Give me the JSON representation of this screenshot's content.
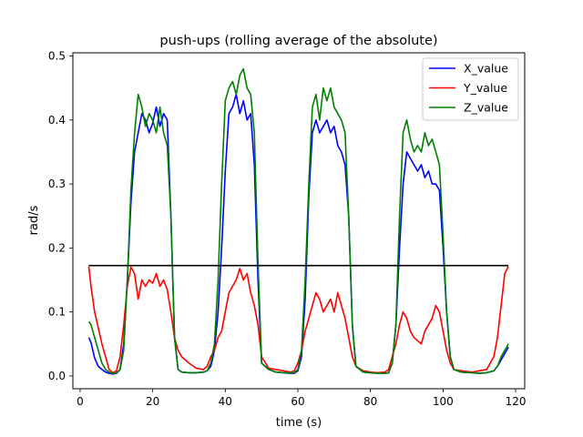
{
  "chart_data": {
    "type": "line",
    "title": "push-ups (rolling average of the absolute)",
    "xlabel": "time (s)",
    "ylabel": "rad/s",
    "xlim": [
      -2.0,
      122.5
    ],
    "ylim": [
      -0.02,
      0.505
    ],
    "xticks": [
      0,
      20,
      40,
      60,
      80,
      100,
      120
    ],
    "xtick_labels": [
      "0",
      "20",
      "40",
      "60",
      "80",
      "100",
      "120"
    ],
    "yticks": [
      0.0,
      0.1,
      0.2,
      0.3,
      0.4,
      0.5
    ],
    "ytick_labels": [
      "0.0",
      "0.1",
      "0.2",
      "0.3",
      "0.4",
      "0.5"
    ],
    "grid": false,
    "legend_position": "top-right",
    "series": [
      {
        "name": "X_value",
        "color": "#0000ff",
        "points": [
          [
            2.4,
            0.06
          ],
          [
            3.0,
            0.052
          ],
          [
            4.0,
            0.028
          ],
          [
            5.0,
            0.015
          ],
          [
            6.0,
            0.01
          ],
          [
            7.0,
            0.006
          ],
          [
            8.0,
            0.004
          ],
          [
            9.0,
            0.003
          ],
          [
            10.0,
            0.004
          ],
          [
            11.0,
            0.01
          ],
          [
            12.0,
            0.05
          ],
          [
            13.0,
            0.15
          ],
          [
            14.0,
            0.27
          ],
          [
            15.0,
            0.35
          ],
          [
            16.0,
            0.38
          ],
          [
            17.0,
            0.41
          ],
          [
            18.0,
            0.4
          ],
          [
            19.0,
            0.38
          ],
          [
            20.0,
            0.395
          ],
          [
            21.0,
            0.42
          ],
          [
            22.0,
            0.39
          ],
          [
            23.0,
            0.41
          ],
          [
            24.0,
            0.4
          ],
          [
            25.0,
            0.25
          ],
          [
            26.0,
            0.06
          ],
          [
            27.0,
            0.01
          ],
          [
            28.0,
            0.006
          ],
          [
            30.0,
            0.005
          ],
          [
            32.0,
            0.005
          ],
          [
            34.0,
            0.006
          ],
          [
            35.0,
            0.008
          ],
          [
            36.0,
            0.015
          ],
          [
            37.0,
            0.04
          ],
          [
            38.0,
            0.1
          ],
          [
            39.0,
            0.2
          ],
          [
            40.0,
            0.32
          ],
          [
            41.0,
            0.41
          ],
          [
            42.0,
            0.42
          ],
          [
            43.0,
            0.44
          ],
          [
            44.0,
            0.41
          ],
          [
            45.0,
            0.43
          ],
          [
            46.0,
            0.4
          ],
          [
            47.0,
            0.41
          ],
          [
            48.0,
            0.33
          ],
          [
            49.0,
            0.15
          ],
          [
            50.0,
            0.02
          ],
          [
            52.0,
            0.01
          ],
          [
            54.0,
            0.006
          ],
          [
            56.0,
            0.005
          ],
          [
            58.0,
            0.004
          ],
          [
            59.0,
            0.004
          ],
          [
            60.0,
            0.008
          ],
          [
            61.0,
            0.03
          ],
          [
            62.0,
            0.12
          ],
          [
            63.0,
            0.28
          ],
          [
            64.0,
            0.38
          ],
          [
            65.0,
            0.4
          ],
          [
            66.0,
            0.38
          ],
          [
            67.0,
            0.39
          ],
          [
            68.0,
            0.4
          ],
          [
            69.0,
            0.38
          ],
          [
            70.0,
            0.39
          ],
          [
            71.0,
            0.36
          ],
          [
            72.0,
            0.35
          ],
          [
            73.0,
            0.33
          ],
          [
            74.0,
            0.25
          ],
          [
            75.0,
            0.08
          ],
          [
            76.0,
            0.015
          ],
          [
            78.0,
            0.006
          ],
          [
            80.0,
            0.005
          ],
          [
            82.0,
            0.004
          ],
          [
            84.0,
            0.004
          ],
          [
            85.0,
            0.005
          ],
          [
            86.0,
            0.02
          ],
          [
            87.0,
            0.08
          ],
          [
            88.0,
            0.2
          ],
          [
            89.0,
            0.3
          ],
          [
            90.0,
            0.35
          ],
          [
            91.0,
            0.34
          ],
          [
            92.0,
            0.33
          ],
          [
            93.0,
            0.32
          ],
          [
            94.0,
            0.33
          ],
          [
            95.0,
            0.31
          ],
          [
            96.0,
            0.32
          ],
          [
            97.0,
            0.3
          ],
          [
            98.0,
            0.3
          ],
          [
            99.0,
            0.29
          ],
          [
            100.0,
            0.2
          ],
          [
            101.0,
            0.1
          ],
          [
            102.0,
            0.03
          ],
          [
            103.0,
            0.01
          ],
          [
            105.0,
            0.006
          ],
          [
            108.0,
            0.005
          ],
          [
            110.0,
            0.004
          ],
          [
            112.0,
            0.005
          ],
          [
            114.0,
            0.008
          ],
          [
            115.0,
            0.015
          ],
          [
            116.0,
            0.025
          ],
          [
            117.0,
            0.035
          ],
          [
            118.0,
            0.045
          ]
        ]
      },
      {
        "name": "Y_value",
        "color": "#ff0000",
        "points": [
          [
            2.4,
            0.171
          ],
          [
            3.0,
            0.14
          ],
          [
            4.0,
            0.1
          ],
          [
            5.0,
            0.075
          ],
          [
            6.0,
            0.05
          ],
          [
            7.0,
            0.03
          ],
          [
            8.0,
            0.01
          ],
          [
            9.0,
            0.005
          ],
          [
            10.0,
            0.008
          ],
          [
            11.0,
            0.03
          ],
          [
            12.0,
            0.08
          ],
          [
            13.0,
            0.14
          ],
          [
            14.0,
            0.17
          ],
          [
            15.0,
            0.16
          ],
          [
            16.0,
            0.12
          ],
          [
            17.0,
            0.15
          ],
          [
            18.0,
            0.14
          ],
          [
            19.0,
            0.15
          ],
          [
            20.0,
            0.145
          ],
          [
            21.0,
            0.16
          ],
          [
            22.0,
            0.14
          ],
          [
            23.0,
            0.15
          ],
          [
            24.0,
            0.135
          ],
          [
            25.0,
            0.1
          ],
          [
            26.0,
            0.06
          ],
          [
            27.0,
            0.04
          ],
          [
            28.0,
            0.03
          ],
          [
            30.0,
            0.02
          ],
          [
            32.0,
            0.012
          ],
          [
            34.0,
            0.01
          ],
          [
            35.0,
            0.015
          ],
          [
            36.0,
            0.03
          ],
          [
            37.0,
            0.04
          ],
          [
            38.0,
            0.06
          ],
          [
            39.0,
            0.07
          ],
          [
            40.0,
            0.1
          ],
          [
            41.0,
            0.13
          ],
          [
            42.0,
            0.14
          ],
          [
            43.0,
            0.15
          ],
          [
            44.0,
            0.168
          ],
          [
            45.0,
            0.15
          ],
          [
            46.0,
            0.16
          ],
          [
            47.0,
            0.13
          ],
          [
            48.0,
            0.11
          ],
          [
            49.0,
            0.08
          ],
          [
            50.0,
            0.03
          ],
          [
            52.0,
            0.012
          ],
          [
            54.0,
            0.01
          ],
          [
            56.0,
            0.008
          ],
          [
            58.0,
            0.006
          ],
          [
            59.0,
            0.008
          ],
          [
            60.0,
            0.02
          ],
          [
            61.0,
            0.04
          ],
          [
            62.0,
            0.07
          ],
          [
            63.0,
            0.09
          ],
          [
            64.0,
            0.11
          ],
          [
            65.0,
            0.13
          ],
          [
            66.0,
            0.12
          ],
          [
            67.0,
            0.1
          ],
          [
            68.0,
            0.11
          ],
          [
            69.0,
            0.12
          ],
          [
            70.0,
            0.1
          ],
          [
            71.0,
            0.13
          ],
          [
            72.0,
            0.11
          ],
          [
            73.0,
            0.09
          ],
          [
            74.0,
            0.06
          ],
          [
            75.0,
            0.03
          ],
          [
            76.0,
            0.015
          ],
          [
            78.0,
            0.008
          ],
          [
            80.0,
            0.006
          ],
          [
            82.0,
            0.005
          ],
          [
            84.0,
            0.006
          ],
          [
            85.0,
            0.01
          ],
          [
            86.0,
            0.03
          ],
          [
            87.0,
            0.05
          ],
          [
            88.0,
            0.08
          ],
          [
            89.0,
            0.1
          ],
          [
            90.0,
            0.09
          ],
          [
            91.0,
            0.07
          ],
          [
            92.0,
            0.06
          ],
          [
            93.0,
            0.055
          ],
          [
            94.0,
            0.05
          ],
          [
            95.0,
            0.07
          ],
          [
            96.0,
            0.08
          ],
          [
            97.0,
            0.09
          ],
          [
            98.0,
            0.11
          ],
          [
            99.0,
            0.1
          ],
          [
            100.0,
            0.07
          ],
          [
            101.0,
            0.04
          ],
          [
            102.0,
            0.02
          ],
          [
            103.0,
            0.01
          ],
          [
            105.0,
            0.008
          ],
          [
            108.0,
            0.006
          ],
          [
            110.0,
            0.008
          ],
          [
            112.0,
            0.01
          ],
          [
            114.0,
            0.03
          ],
          [
            115.0,
            0.06
          ],
          [
            116.0,
            0.11
          ],
          [
            117.0,
            0.16
          ],
          [
            118.0,
            0.171
          ]
        ]
      },
      {
        "name": "Z_value",
        "color": "#008000",
        "points": [
          [
            2.4,
            0.085
          ],
          [
            3.0,
            0.08
          ],
          [
            4.0,
            0.06
          ],
          [
            5.0,
            0.04
          ],
          [
            6.0,
            0.02
          ],
          [
            7.0,
            0.01
          ],
          [
            8.0,
            0.006
          ],
          [
            9.0,
            0.004
          ],
          [
            10.0,
            0.005
          ],
          [
            11.0,
            0.01
          ],
          [
            12.0,
            0.04
          ],
          [
            13.0,
            0.15
          ],
          [
            14.0,
            0.29
          ],
          [
            15.0,
            0.38
          ],
          [
            16.0,
            0.44
          ],
          [
            17.0,
            0.42
          ],
          [
            18.0,
            0.39
          ],
          [
            19.0,
            0.41
          ],
          [
            20.0,
            0.4
          ],
          [
            21.0,
            0.38
          ],
          [
            22.0,
            0.42
          ],
          [
            23.0,
            0.38
          ],
          [
            24.0,
            0.36
          ],
          [
            25.0,
            0.25
          ],
          [
            26.0,
            0.06
          ],
          [
            27.0,
            0.01
          ],
          [
            28.0,
            0.006
          ],
          [
            30.0,
            0.005
          ],
          [
            32.0,
            0.005
          ],
          [
            34.0,
            0.006
          ],
          [
            35.0,
            0.008
          ],
          [
            36.0,
            0.02
          ],
          [
            37.0,
            0.05
          ],
          [
            38.0,
            0.15
          ],
          [
            39.0,
            0.3
          ],
          [
            40.0,
            0.43
          ],
          [
            41.0,
            0.45
          ],
          [
            42.0,
            0.46
          ],
          [
            43.0,
            0.44
          ],
          [
            44.0,
            0.47
          ],
          [
            45.0,
            0.48
          ],
          [
            46.0,
            0.45
          ],
          [
            47.0,
            0.44
          ],
          [
            48.0,
            0.38
          ],
          [
            49.0,
            0.18
          ],
          [
            50.0,
            0.02
          ],
          [
            52.0,
            0.01
          ],
          [
            54.0,
            0.006
          ],
          [
            56.0,
            0.005
          ],
          [
            58.0,
            0.005
          ],
          [
            59.0,
            0.005
          ],
          [
            60.0,
            0.01
          ],
          [
            61.0,
            0.04
          ],
          [
            62.0,
            0.15
          ],
          [
            63.0,
            0.3
          ],
          [
            64.0,
            0.42
          ],
          [
            65.0,
            0.44
          ],
          [
            66.0,
            0.4
          ],
          [
            67.0,
            0.45
          ],
          [
            68.0,
            0.43
          ],
          [
            69.0,
            0.45
          ],
          [
            70.0,
            0.42
          ],
          [
            71.0,
            0.41
          ],
          [
            72.0,
            0.4
          ],
          [
            73.0,
            0.38
          ],
          [
            74.0,
            0.25
          ],
          [
            75.0,
            0.08
          ],
          [
            76.0,
            0.015
          ],
          [
            78.0,
            0.006
          ],
          [
            80.0,
            0.005
          ],
          [
            82.0,
            0.004
          ],
          [
            84.0,
            0.004
          ],
          [
            85.0,
            0.005
          ],
          [
            86.0,
            0.02
          ],
          [
            87.0,
            0.08
          ],
          [
            88.0,
            0.25
          ],
          [
            89.0,
            0.38
          ],
          [
            90.0,
            0.4
          ],
          [
            91.0,
            0.37
          ],
          [
            92.0,
            0.35
          ],
          [
            93.0,
            0.36
          ],
          [
            94.0,
            0.35
          ],
          [
            95.0,
            0.38
          ],
          [
            96.0,
            0.36
          ],
          [
            97.0,
            0.37
          ],
          [
            98.0,
            0.35
          ],
          [
            99.0,
            0.33
          ],
          [
            100.0,
            0.22
          ],
          [
            101.0,
            0.1
          ],
          [
            102.0,
            0.03
          ],
          [
            103.0,
            0.01
          ],
          [
            105.0,
            0.006
          ],
          [
            108.0,
            0.005
          ],
          [
            110.0,
            0.004
          ],
          [
            112.0,
            0.005
          ],
          [
            114.0,
            0.008
          ],
          [
            115.0,
            0.015
          ],
          [
            116.0,
            0.03
          ],
          [
            117.0,
            0.04
          ],
          [
            118.0,
            0.05
          ]
        ]
      },
      {
        "name": "",
        "color": "#000000",
        "points": [
          [
            2.4,
            0.1725
          ],
          [
            118.0,
            0.1725
          ]
        ]
      }
    ]
  }
}
